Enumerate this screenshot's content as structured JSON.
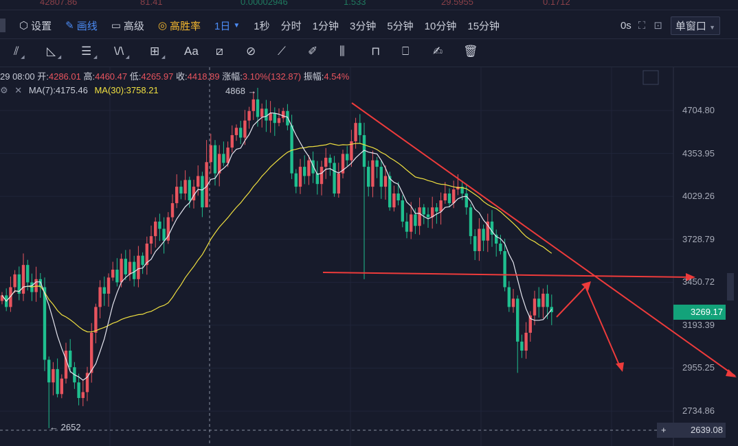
{
  "ticker_values": [
    "42807.86",
    "81.41",
    "0.00002946",
    "1.533",
    "29.5955",
    "0.1712"
  ],
  "toolbar": {
    "settings_label": "设置",
    "draw_label": "画线",
    "advanced_label": "高级",
    "win_rate_label": "高胜率",
    "interval_selected": "1日",
    "periods": [
      "1秒",
      "分时",
      "1分钟",
      "3分钟",
      "5分钟",
      "10分钟",
      "15分钟"
    ],
    "countdown": "0s",
    "window_mode": "单窗口"
  },
  "drawing_tools": [
    "parallel-lines-icon",
    "triangle-icon",
    "horizontal-lines-icon",
    "wave-icon",
    "add-box-icon",
    "text-icon",
    "ruler-icon",
    "ruler-circle-icon",
    "ruler-small-icon",
    "pencil-icon",
    "candles-icon",
    "lock-icon",
    "bookmark-icon",
    "edit-note-icon",
    "trash-icon"
  ],
  "text_tool_label": "Aa",
  "crosshair_info": {
    "time": "29 08:00",
    "open_label": "开:",
    "open": "4286.01",
    "high_label": "高:",
    "high": "4460.47",
    "low_label": "低:",
    "low": "4265.97",
    "close_label": "收:",
    "close": "4418.89",
    "change_label": "涨幅:",
    "change": "3.10%(132.87)",
    "amplitude_label": "振幅:",
    "amplitude": "4.54%"
  },
  "indicators": {
    "ma7_label": "MA(7):4175.46",
    "ma30_label": "MA(30):3758.21",
    "ma7_color": "#e6e6f0",
    "ma30_color": "#f0e040"
  },
  "colors": {
    "up": "#e8545e",
    "down": "#1fbf8f",
    "background": "#171b2b",
    "annotation": "#ee3b3b"
  },
  "chart_data": {
    "type": "candlestick",
    "y_scale": "log",
    "y_ticks": [
      "4704.80",
      "4353.95",
      "4029.26",
      "3728.79",
      "3450.72",
      "3193.39",
      "2955.25",
      "2734.86"
    ],
    "ylim": [
      2639.08,
      4868
    ],
    "current_price": "3269.17",
    "crosshair_price": "2639.08",
    "max_label": "4868",
    "min_label": "2652",
    "max": 4868,
    "min": 2652,
    "close": [
      3370,
      3300,
      3420,
      3500,
      3380,
      3560,
      3450,
      3390,
      3470,
      3420,
      3000,
      2880,
      2950,
      2820,
      2900,
      3050,
      2960,
      2880,
      2800,
      2830,
      2930,
      3150,
      3300,
      3420,
      3380,
      3480,
      3530,
      3450,
      3600,
      3500,
      3580,
      3470,
      3620,
      3560,
      3700,
      3750,
      3850,
      3800,
      3720,
      3880,
      3980,
      4100,
      4050,
      4150,
      4000,
      4100,
      4180,
      3950,
      4286.01,
      4418.89,
      4200,
      4350,
      4280,
      4400,
      4500,
      4560,
      4480,
      4620,
      4700,
      4800,
      4650,
      4720,
      4620,
      4680,
      4600,
      4640,
      4700,
      4580,
      4200,
      4100,
      4250,
      4180,
      4300,
      4200,
      4120,
      4250,
      4320,
      4280,
      4050,
      4200,
      4350,
      4300,
      4450,
      4600,
      4500,
      4250,
      4100,
      4300,
      4250,
      4100,
      4180,
      3950,
      4050,
      4000,
      3850,
      3780,
      3900,
      3820,
      3950,
      3900,
      3880,
      3950,
      3920,
      4000,
      4050,
      3980,
      4080,
      4100,
      4050,
      3950,
      3750,
      3650,
      3800,
      3720,
      3850,
      3760,
      3700,
      3650,
      3420,
      3300,
      3350,
      3100,
      3050,
      3150,
      3250,
      3350,
      3300,
      3380,
      3300,
      3269.17
    ]
  }
}
